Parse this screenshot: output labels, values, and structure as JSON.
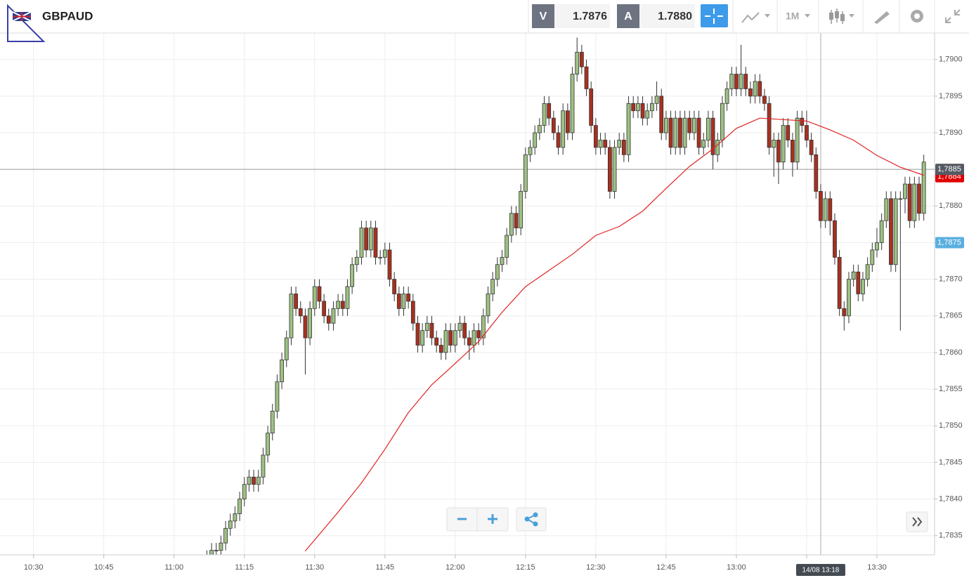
{
  "header": {
    "symbol": "GBPAUD",
    "bid": {
      "label": "V",
      "value": "1.7876"
    },
    "ask": {
      "label": "A",
      "value": "1.7880"
    },
    "timeframe": "1M"
  },
  "chart_data": {
    "type": "candlestick",
    "up_color": "#9dc183",
    "down_color": "#a8301f",
    "grid": true,
    "xlim": [
      "10:23",
      "13:42"
    ],
    "xticks": [
      "10:30",
      "10:45",
      "11:00",
      "11:15",
      "11:30",
      "11:45",
      "12:00",
      "12:15",
      "12:30",
      "12:45",
      "13:00",
      "13:15",
      "13:30"
    ],
    "ylim": [
      1.7832,
      1.7904
    ],
    "yticks": [
      {
        "value": 1.7835,
        "label": "1,7835"
      },
      {
        "value": 1.784,
        "label": "1,7840"
      },
      {
        "value": 1.7845,
        "label": "1,7845"
      },
      {
        "value": 1.785,
        "label": "1,7850"
      },
      {
        "value": 1.7855,
        "label": "1,7855"
      },
      {
        "value": 1.786,
        "label": "1,7860"
      },
      {
        "value": 1.7865,
        "label": "1,7865"
      },
      {
        "value": 1.787,
        "label": "1,7870"
      },
      {
        "value": 1.7875,
        "label": "1,7875"
      },
      {
        "value": 1.788,
        "label": "1,7880"
      },
      {
        "value": 1.7885,
        "label": "1,7885"
      },
      {
        "value": 1.789,
        "label": "1,7890"
      },
      {
        "value": 1.7895,
        "label": "1,7895"
      },
      {
        "value": 1.79,
        "label": "1,7900"
      }
    ],
    "x": [
      "11:07",
      "11:08",
      "11:09",
      "11:10",
      "11:11",
      "11:12",
      "11:13",
      "11:14",
      "11:15",
      "11:16",
      "11:17",
      "11:18",
      "11:19",
      "11:20",
      "11:21",
      "11:22",
      "11:23",
      "11:24",
      "11:25",
      "11:26",
      "11:27",
      "11:28",
      "11:29",
      "11:30",
      "11:31",
      "11:32",
      "11:33",
      "11:34",
      "11:35",
      "11:36",
      "11:37",
      "11:38",
      "11:39",
      "11:40",
      "11:41",
      "11:42",
      "11:43",
      "11:44",
      "11:45",
      "11:46",
      "11:47",
      "11:48",
      "11:49",
      "11:50",
      "11:51",
      "11:52",
      "11:53",
      "11:54",
      "11:55",
      "11:56",
      "11:57",
      "11:58",
      "11:59",
      "12:00",
      "12:01",
      "12:02",
      "12:03",
      "12:04",
      "12:05",
      "12:06",
      "12:07",
      "12:08",
      "12:09",
      "12:10",
      "12:11",
      "12:12",
      "12:13",
      "12:14",
      "12:15",
      "12:16",
      "12:17",
      "12:18",
      "12:19",
      "12:20",
      "12:21",
      "12:22",
      "12:23",
      "12:24",
      "12:25",
      "12:26",
      "12:27",
      "12:28",
      "12:29",
      "12:30",
      "12:31",
      "12:32",
      "12:33",
      "12:34",
      "12:35",
      "12:36",
      "12:37",
      "12:38",
      "12:39",
      "12:40",
      "12:41",
      "12:42",
      "12:43",
      "12:44",
      "12:45",
      "12:46",
      "12:47",
      "12:48",
      "12:49",
      "12:50",
      "12:51",
      "12:52",
      "12:53",
      "12:54",
      "12:55",
      "12:56",
      "12:57",
      "12:58",
      "12:59",
      "13:00",
      "13:01",
      "13:02",
      "13:03",
      "13:04",
      "13:05",
      "13:06",
      "13:07",
      "13:08",
      "13:09",
      "13:10",
      "13:11",
      "13:12",
      "13:13",
      "13:14",
      "13:15",
      "13:16",
      "13:17",
      "13:18",
      "13:19",
      "13:20",
      "13:21",
      "13:22",
      "13:23",
      "13:24",
      "13:25",
      "13:26",
      "13:27",
      "13:28",
      "13:29",
      "13:30",
      "13:31",
      "13:32",
      "13:33",
      "13:34",
      "13:35",
      "13:36",
      "13:37",
      "13:38",
      "13:39",
      "13:40"
    ],
    "open": [
      1.7831,
      1.7832,
      1.7833,
      1.7833,
      1.7834,
      1.7836,
      1.7837,
      1.7838,
      1.784,
      1.7842,
      1.7843,
      1.7842,
      1.7843,
      1.7846,
      1.7849,
      1.7852,
      1.7856,
      1.7859,
      1.7862,
      1.7868,
      1.7866,
      1.7865,
      1.7862,
      1.7866,
      1.7869,
      1.7867,
      1.7865,
      1.7864,
      1.7866,
      1.7867,
      1.7866,
      1.7869,
      1.7872,
      1.7873,
      1.7877,
      1.7874,
      1.7877,
      1.7873,
      1.7873,
      1.7874,
      1.787,
      1.7868,
      1.7866,
      1.7868,
      1.7867,
      1.7864,
      1.7861,
      1.7863,
      1.7864,
      1.7862,
      1.7861,
      1.786,
      1.7863,
      1.7861,
      1.7863,
      1.7864,
      1.7862,
      1.7861,
      1.7863,
      1.7862,
      1.7865,
      1.7868,
      1.787,
      1.7872,
      1.7873,
      1.7876,
      1.7879,
      1.7877,
      1.7882,
      1.7887,
      1.7888,
      1.789,
      1.7891,
      1.7894,
      1.7892,
      1.789,
      1.7888,
      1.7893,
      1.789,
      1.7898,
      1.7901,
      1.7899,
      1.7896,
      1.7891,
      1.7888,
      1.7889,
      1.7888,
      1.7882,
      1.7888,
      1.7889,
      1.7887,
      1.7894,
      1.7893,
      1.7894,
      1.7892,
      1.7893,
      1.7894,
      1.7895,
      1.789,
      1.7892,
      1.7888,
      1.7892,
      1.7888,
      1.7892,
      1.789,
      1.7892,
      1.7888,
      1.7889,
      1.7892,
      1.7887,
      1.7889,
      1.7894,
      1.7896,
      1.7898,
      1.7896,
      1.7898,
      1.7896,
      1.7895,
      1.7897,
      1.7895,
      1.7894,
      1.7888,
      1.7889,
      1.7886,
      1.7891,
      1.7889,
      1.7886,
      1.7892,
      1.7891,
      1.7889,
      1.7887,
      1.7882,
      1.7878,
      1.7881,
      1.7878,
      1.7873,
      1.7866,
      1.7865,
      1.787,
      1.7871,
      1.7868,
      1.787,
      1.7872,
      1.7874,
      1.7875,
      1.7878,
      1.7881,
      1.7872,
      1.7881,
      1.7881,
      1.7883,
      1.7878,
      1.7883,
      1.7879
    ],
    "high": [
      1.7833,
      1.7834,
      1.7834,
      1.7835,
      1.7837,
      1.7838,
      1.7839,
      1.7841,
      1.7843,
      1.7844,
      1.7844,
      1.7844,
      1.7847,
      1.785,
      1.7853,
      1.7857,
      1.786,
      1.7863,
      1.7869,
      1.7869,
      1.7867,
      1.7866,
      1.7867,
      1.787,
      1.787,
      1.7868,
      1.7866,
      1.7867,
      1.7868,
      1.7868,
      1.787,
      1.7873,
      1.7874,
      1.7878,
      1.7878,
      1.7878,
      1.7878,
      1.7874,
      1.7875,
      1.7875,
      1.7871,
      1.7869,
      1.7869,
      1.7869,
      1.7868,
      1.7865,
      1.7864,
      1.7865,
      1.7865,
      1.7863,
      1.7862,
      1.7864,
      1.7864,
      1.7864,
      1.7865,
      1.7865,
      1.7863,
      1.7864,
      1.7864,
      1.7866,
      1.7869,
      1.7871,
      1.7873,
      1.7874,
      1.7877,
      1.788,
      1.788,
      1.7883,
      1.7888,
      1.7889,
      1.7891,
      1.7892,
      1.7895,
      1.7895,
      1.7893,
      1.7891,
      1.7894,
      1.7894,
      1.7899,
      1.7903,
      1.7902,
      1.79,
      1.7897,
      1.7892,
      1.789,
      1.789,
      1.7889,
      1.7889,
      1.789,
      1.789,
      1.7895,
      1.7895,
      1.7895,
      1.7895,
      1.7894,
      1.7895,
      1.7897,
      1.7896,
      1.7893,
      1.7893,
      1.7893,
      1.7893,
      1.7893,
      1.7893,
      1.7893,
      1.7893,
      1.789,
      1.7893,
      1.7893,
      1.789,
      1.7895,
      1.7897,
      1.7899,
      1.7899,
      1.7902,
      1.7899,
      1.7897,
      1.7898,
      1.7898,
      1.7896,
      1.7895,
      1.789,
      1.789,
      1.7892,
      1.7892,
      1.789,
      1.7893,
      1.7893,
      1.7893,
      1.789,
      1.7888,
      1.7883,
      1.7882,
      1.7882,
      1.7879,
      1.7874,
      1.7867,
      1.7871,
      1.7872,
      1.7872,
      1.7871,
      1.7873,
      1.7875,
      1.7877,
      1.7879,
      1.7882,
      1.7882,
      1.7882,
      1.7882,
      1.7884,
      1.7884,
      1.7884,
      1.7884,
      1.7887
    ],
    "low": [
      1.783,
      1.7831,
      1.7832,
      1.7832,
      1.7833,
      1.7835,
      1.7836,
      1.7837,
      1.7839,
      1.7841,
      1.7841,
      1.7841,
      1.7842,
      1.7845,
      1.7848,
      1.7851,
      1.7855,
      1.7858,
      1.7861,
      1.7865,
      1.7864,
      1.7857,
      1.7861,
      1.7865,
      1.7866,
      1.7864,
      1.7863,
      1.7863,
      1.7865,
      1.7865,
      1.7865,
      1.7868,
      1.7871,
      1.7872,
      1.7873,
      1.7873,
      1.7872,
      1.7872,
      1.7872,
      1.7869,
      1.7867,
      1.7865,
      1.7865,
      1.7866,
      1.7863,
      1.786,
      1.786,
      1.7862,
      1.7861,
      1.786,
      1.7859,
      1.7859,
      1.786,
      1.786,
      1.7862,
      1.7861,
      1.7859,
      1.786,
      1.7861,
      1.7861,
      1.7864,
      1.7867,
      1.7869,
      1.7871,
      1.7872,
      1.7875,
      1.7876,
      1.7876,
      1.7881,
      1.7886,
      1.7887,
      1.7889,
      1.789,
      1.7891,
      1.7889,
      1.7887,
      1.7887,
      1.7889,
      1.7889,
      1.7897,
      1.7898,
      1.7895,
      1.789,
      1.7887,
      1.7887,
      1.7887,
      1.7881,
      1.7881,
      1.7887,
      1.7886,
      1.7886,
      1.7892,
      1.7892,
      1.7891,
      1.7891,
      1.7892,
      1.7893,
      1.7889,
      1.7889,
      1.7887,
      1.7887,
      1.7887,
      1.7887,
      1.7889,
      1.7889,
      1.7887,
      1.7887,
      1.7888,
      1.7885,
      1.7886,
      1.7888,
      1.7893,
      1.7895,
      1.7895,
      1.7895,
      1.7895,
      1.7894,
      1.7894,
      1.7894,
      1.7893,
      1.7887,
      1.7884,
      1.7883,
      1.7885,
      1.7888,
      1.7884,
      1.7885,
      1.789,
      1.7888,
      1.7886,
      1.7881,
      1.7877,
      1.7877,
      1.7876,
      1.7872,
      1.7865,
      1.7863,
      1.7864,
      1.7869,
      1.7867,
      1.7867,
      1.7869,
      1.7871,
      1.7873,
      1.7874,
      1.7877,
      1.7871,
      1.7871,
      1.7863,
      1.7879,
      1.7877,
      1.7877,
      1.7878,
      1.7878
    ],
    "close": [
      1.7832,
      1.7833,
      1.7833,
      1.7834,
      1.7836,
      1.7837,
      1.7838,
      1.784,
      1.7842,
      1.7843,
      1.7842,
      1.7843,
      1.7846,
      1.7849,
      1.7852,
      1.7856,
      1.7859,
      1.7862,
      1.7868,
      1.7866,
      1.7865,
      1.7862,
      1.7866,
      1.7869,
      1.7867,
      1.7865,
      1.7864,
      1.7866,
      1.7867,
      1.7866,
      1.7869,
      1.7872,
      1.7873,
      1.7877,
      1.7874,
      1.7877,
      1.7873,
      1.7873,
      1.7874,
      1.787,
      1.7868,
      1.7866,
      1.7868,
      1.7867,
      1.7864,
      1.7861,
      1.7863,
      1.7864,
      1.7862,
      1.7861,
      1.786,
      1.7863,
      1.7861,
      1.7863,
      1.7864,
      1.7862,
      1.7861,
      1.7863,
      1.7862,
      1.7865,
      1.7868,
      1.787,
      1.7872,
      1.7873,
      1.7876,
      1.7879,
      1.7877,
      1.7882,
      1.7887,
      1.7888,
      1.789,
      1.7891,
      1.7894,
      1.7892,
      1.789,
      1.7888,
      1.7893,
      1.789,
      1.7898,
      1.7901,
      1.7899,
      1.7896,
      1.7891,
      1.7888,
      1.7889,
      1.7888,
      1.7882,
      1.7888,
      1.7889,
      1.7887,
      1.7894,
      1.7893,
      1.7894,
      1.7892,
      1.7893,
      1.7894,
      1.7895,
      1.789,
      1.7892,
      1.7888,
      1.7892,
      1.7888,
      1.7892,
      1.789,
      1.7892,
      1.7888,
      1.7889,
      1.7892,
      1.7887,
      1.7889,
      1.7894,
      1.7896,
      1.7898,
      1.7896,
      1.7898,
      1.7896,
      1.7895,
      1.7897,
      1.7895,
      1.7894,
      1.7888,
      1.7889,
      1.7886,
      1.7891,
      1.7889,
      1.7886,
      1.7892,
      1.7891,
      1.7889,
      1.7887,
      1.7882,
      1.7878,
      1.7881,
      1.7878,
      1.7873,
      1.7866,
      1.7865,
      1.787,
      1.7871,
      1.7868,
      1.787,
      1.7872,
      1.7874,
      1.7875,
      1.7878,
      1.7881,
      1.7872,
      1.7881,
      1.7881,
      1.7883,
      1.7878,
      1.7883,
      1.7879,
      1.7886
    ],
    "ma": {
      "color": "#e02424",
      "x": [
        "11:28",
        "11:35",
        "11:40",
        "11:45",
        "11:50",
        "11:55",
        "12:00",
        "12:05",
        "12:10",
        "12:15",
        "12:20",
        "12:25",
        "12:30",
        "12:35",
        "12:40",
        "12:45",
        "12:50",
        "12:55",
        "13:00",
        "13:05",
        "13:10",
        "13:15",
        "13:20",
        "13:25",
        "13:30",
        "13:35",
        "13:40"
      ],
      "values": [
        1.78329,
        1.78382,
        1.78422,
        1.78468,
        1.78518,
        1.78556,
        1.78585,
        1.78615,
        1.78655,
        1.7869,
        1.78712,
        1.78734,
        1.7876,
        1.78772,
        1.78793,
        1.78824,
        1.78854,
        1.78878,
        1.78906,
        1.7892,
        1.78918,
        1.78916,
        1.78904,
        1.7889,
        1.78869,
        1.78853,
        1.78842
      ]
    },
    "price_line": {
      "value": 1.7885,
      "label": "1,7885"
    },
    "ma_label": {
      "value": 1.7884,
      "label": "1,7884"
    },
    "crosshair": {
      "x": "13:18",
      "x_label": "14/08 13:18",
      "y": 1.7875,
      "y_label": "1,7875"
    }
  }
}
